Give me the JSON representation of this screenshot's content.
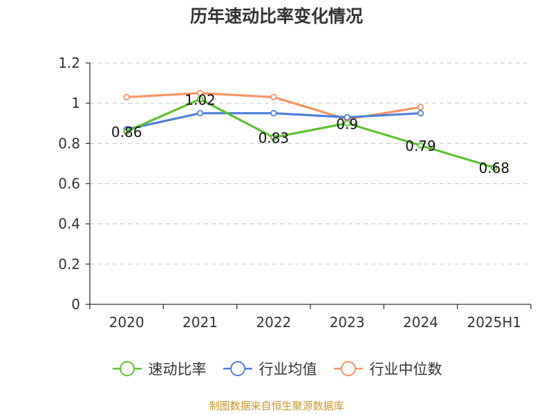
{
  "title": "历年速动比率变化情况",
  "source_note": "制图数据来自恒生聚源数据库",
  "chart_data": {
    "type": "line",
    "title": "历年速动比率变化情况",
    "categories": [
      "2020",
      "2021",
      "2022",
      "2023",
      "2024",
      "2025H1"
    ],
    "ylim": [
      0,
      1.2
    ],
    "yticks": [
      0,
      0.2,
      0.4,
      0.6,
      0.8,
      1,
      1.2
    ],
    "grid": true,
    "legend_position": "bottom",
    "series": [
      {
        "name": "速动比率",
        "color": "#5cc22d",
        "values": [
          0.86,
          1.02,
          0.83,
          0.9,
          0.79,
          0.68
        ],
        "show_labels": true
      },
      {
        "name": "行业均值",
        "color": "#4c7fd8",
        "values": [
          0.87,
          0.95,
          0.95,
          0.93,
          0.95,
          null
        ],
        "show_labels": false
      },
      {
        "name": "行业中位数",
        "color": "#f79260",
        "values": [
          1.03,
          1.05,
          1.03,
          0.92,
          0.98,
          null
        ],
        "show_labels": false
      }
    ]
  }
}
